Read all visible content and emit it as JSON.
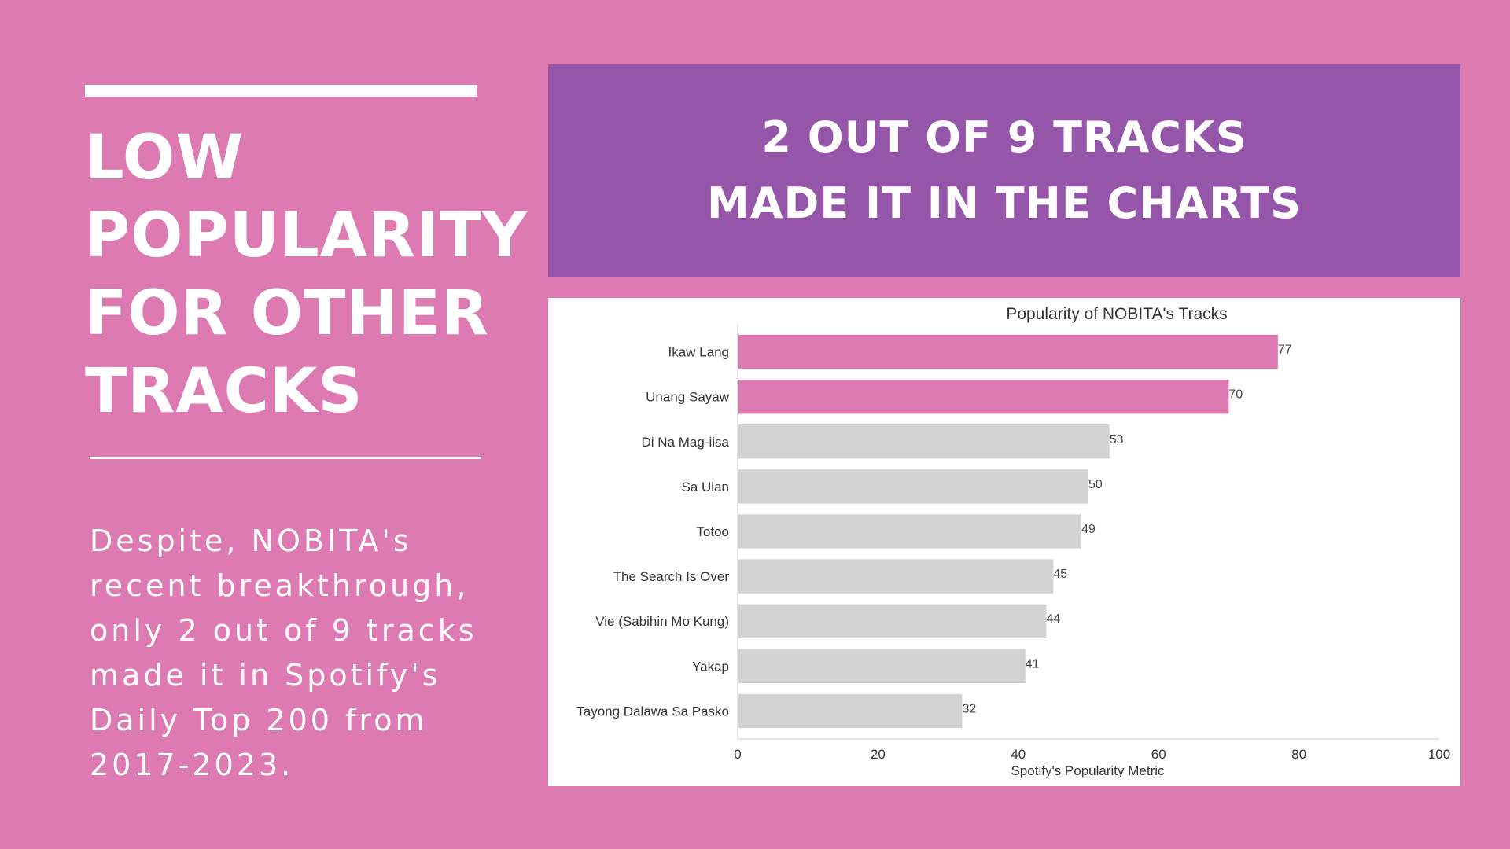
{
  "left_panel": {
    "headline": [
      "LOW",
      "POPULARITY",
      "FOR OTHER",
      "TRACKS"
    ],
    "description": [
      "Despite, NOBITA's",
      "recent breakthrough,",
      "only 2 out of 9 tracks",
      "made it in Spotify's",
      "Daily Top 200 from",
      "2017-2023."
    ]
  },
  "banner": {
    "line1": "2 OUT OF 9 TRACKS",
    "line2": "MADE IT IN THE CHARTS"
  },
  "colors": {
    "background": "#de7ab2",
    "banner": "#9556aa",
    "highlight_bar": "#de7ab2",
    "other_bar": "#d3d3d3"
  },
  "chart_data": {
    "type": "bar",
    "orientation": "horizontal",
    "title": "Popularity of NOBITA's Tracks",
    "xlabel": "Spotify's Popularity Metric",
    "ylabel": "",
    "categories": [
      "Ikaw Lang",
      "Unang Sayaw",
      "Di Na Mag-iisa",
      "Sa Ulan",
      "Totoo",
      "The Search Is Over",
      "Vie (Sabihin Mo Kung)",
      "Yakap",
      "Tayong Dalawa Sa Pasko"
    ],
    "values": [
      77,
      70,
      53,
      50,
      49,
      45,
      44,
      41,
      32
    ],
    "highlighted": [
      true,
      true,
      false,
      false,
      false,
      false,
      false,
      false,
      false
    ],
    "xlim": [
      0,
      100
    ],
    "xticks": [
      0,
      20,
      40,
      60,
      80,
      100
    ],
    "grid": false,
    "data_labels": true
  }
}
